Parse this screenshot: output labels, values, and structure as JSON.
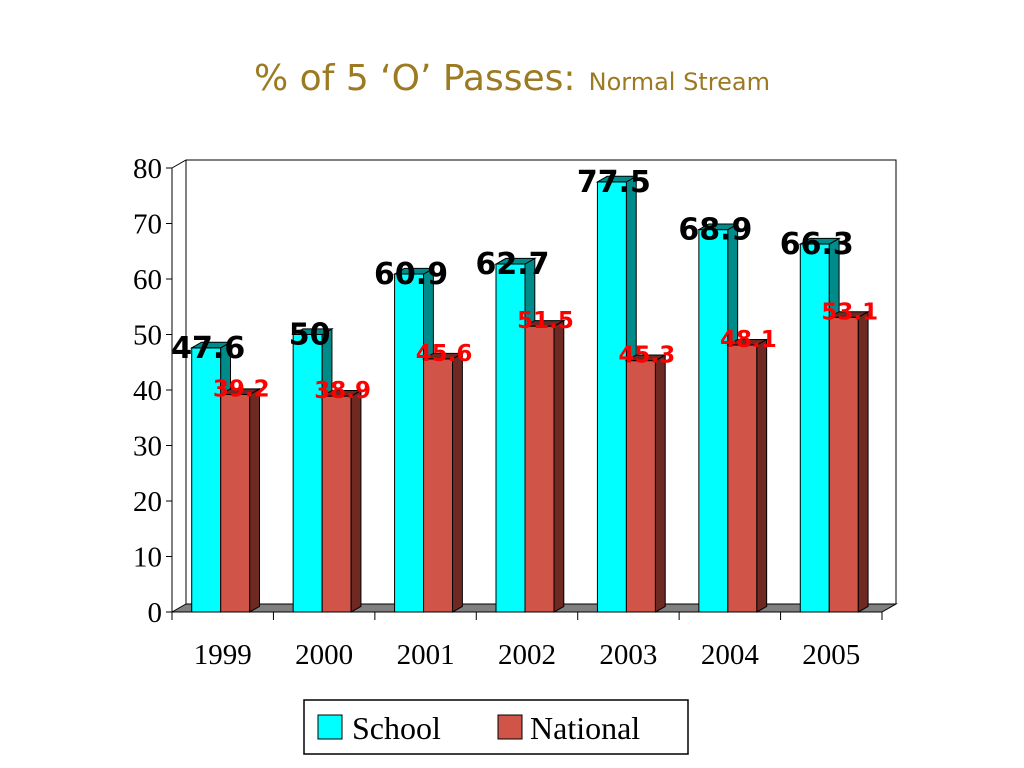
{
  "slide": {
    "title": "% of 5 ‘O’ Passes:",
    "subtitle": "Normal Stream"
  },
  "chart_data": {
    "type": "bar",
    "style": "3d-clustered-column",
    "categories": [
      "1999",
      "2000",
      "2001",
      "2002",
      "2003",
      "2004",
      "2005"
    ],
    "series": [
      {
        "name": "School",
        "values": [
          47.6,
          50,
          60.9,
          62.7,
          77.5,
          68.9,
          66.3
        ],
        "labels": [
          "47.6",
          "50",
          "60.9",
          "62.7",
          "77.5",
          "68.9",
          "66.3"
        ],
        "color": "#00ffff",
        "side_color": "#008b8b",
        "label_color": "#000000"
      },
      {
        "name": "National",
        "values": [
          39.2,
          38.9,
          45.6,
          51.5,
          45.3,
          48.1,
          53.1
        ],
        "labels": [
          "39.2",
          "38.9",
          "45.6",
          "51.5",
          "45.3",
          "48.1",
          "53.1"
        ],
        "color": "#d05548",
        "side_color": "#6e2a22",
        "label_color": "#ff0000"
      }
    ],
    "ylim": [
      0,
      80
    ],
    "yticks": [
      "0",
      "10",
      "20",
      "30",
      "40",
      "50",
      "60",
      "70",
      "80"
    ],
    "grid": false,
    "legend": "bottom"
  }
}
